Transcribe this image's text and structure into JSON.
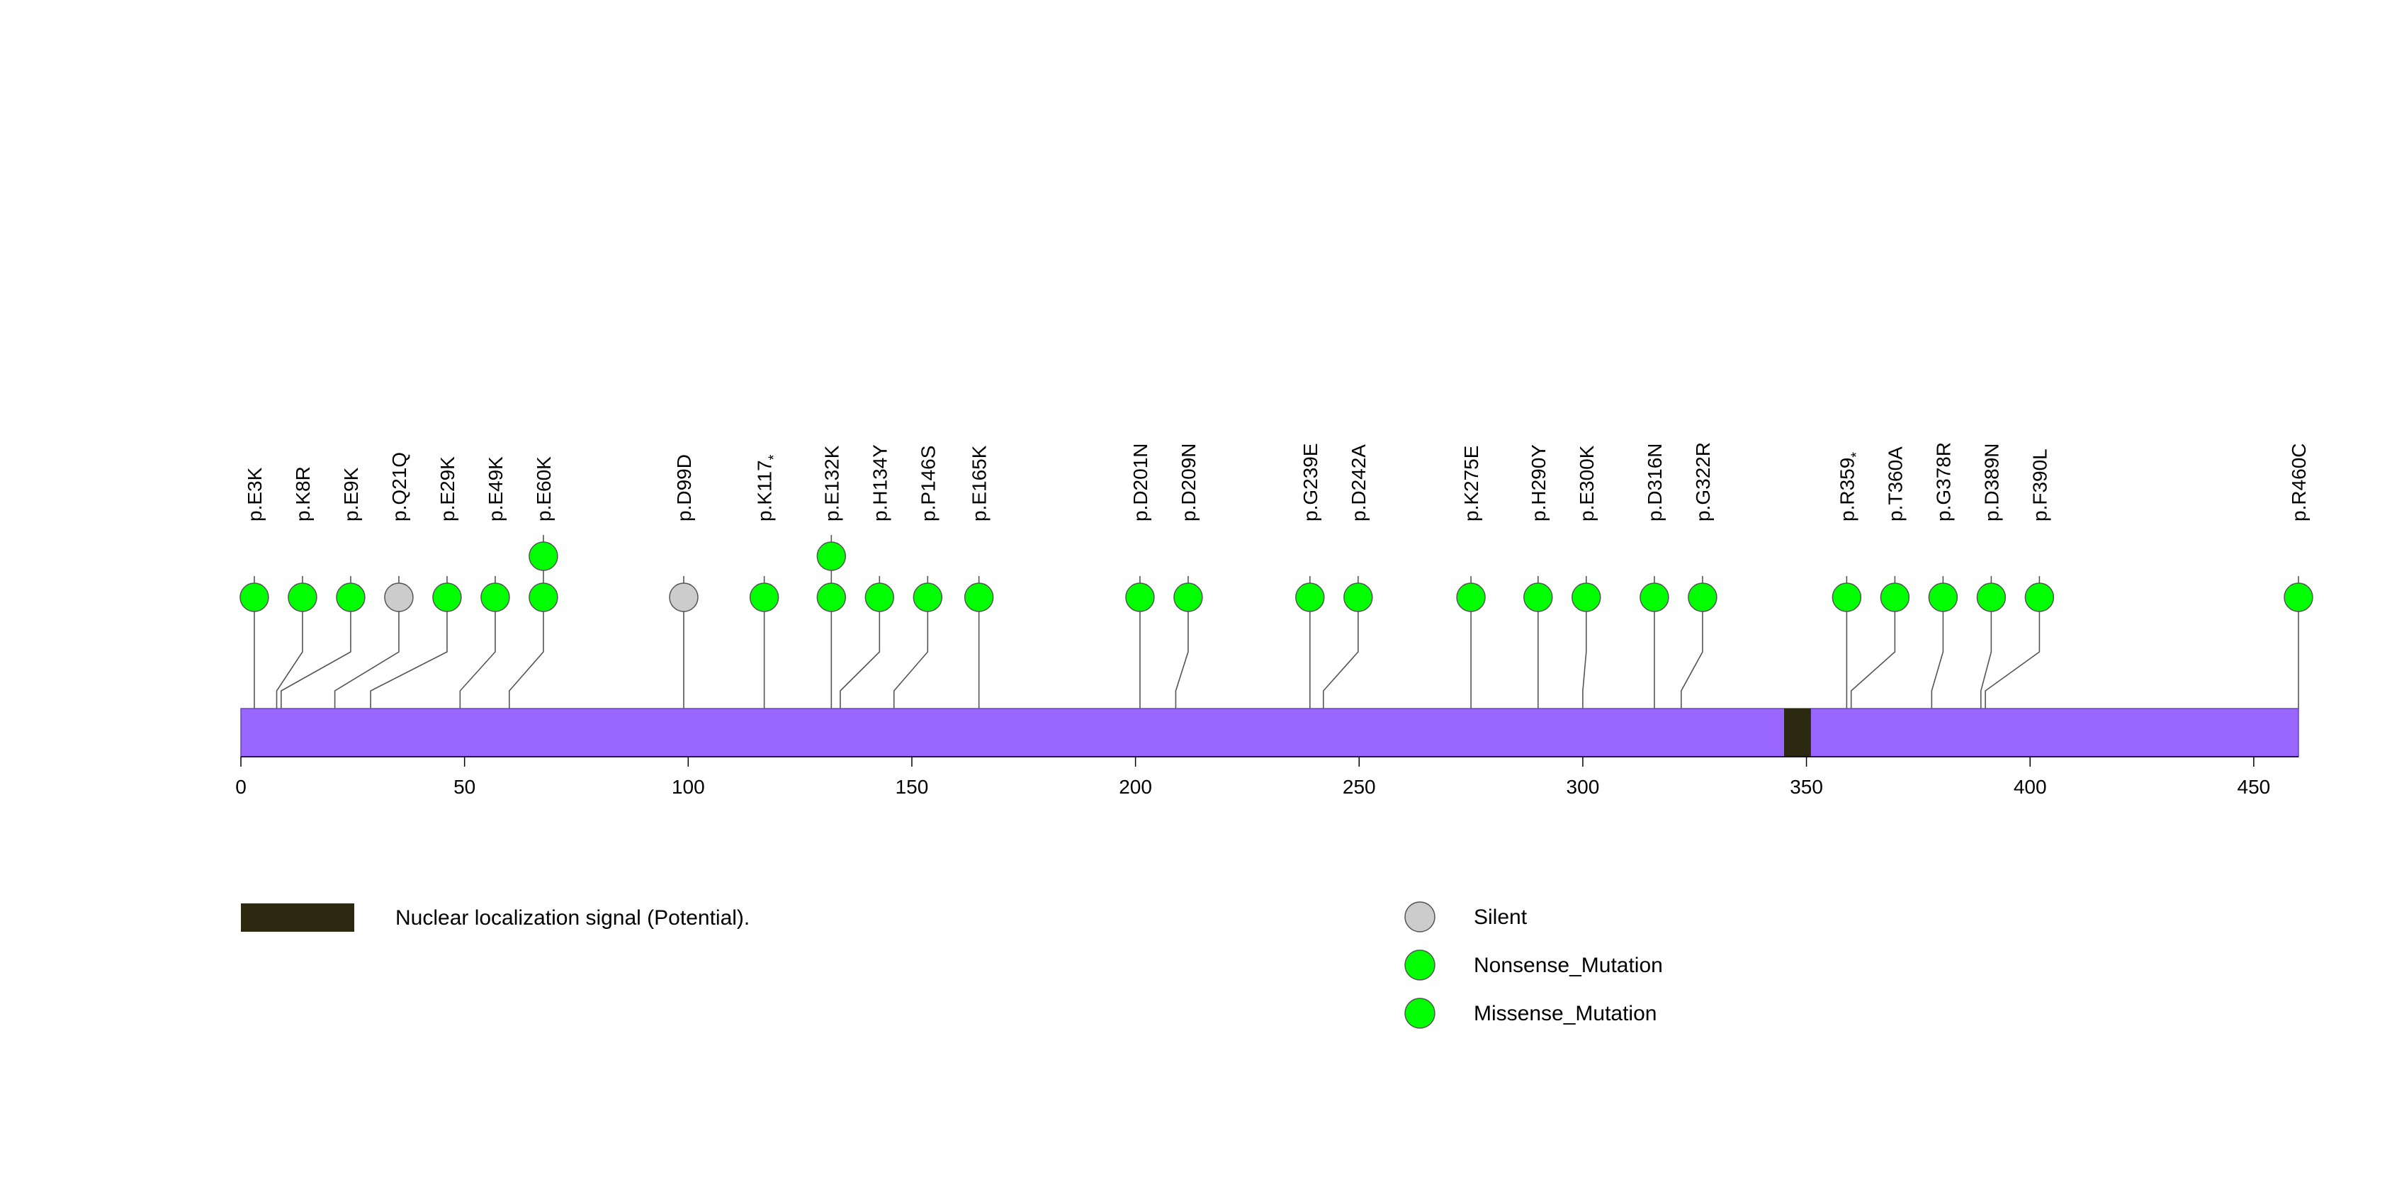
{
  "chart_data": {
    "type": "lollipop",
    "protein_length": 460,
    "axis": {
      "ticks": [
        0,
        50,
        100,
        150,
        200,
        250,
        300,
        350,
        400,
        450
      ]
    },
    "domains": [
      {
        "label": "Nuclear localization signal (Potential).",
        "start": 345,
        "end": 351,
        "color": "#2b2a10"
      }
    ],
    "legend": [
      {
        "label": "Silent",
        "color": "#cccccc"
      },
      {
        "label": "Nonsense_Mutation",
        "color": "#00ff00"
      },
      {
        "label": "Missense_Mutation",
        "color": "#00ff00"
      }
    ],
    "mutations": [
      {
        "label": "p.E3K",
        "position": 3,
        "count": 1,
        "type": "Missense_Mutation"
      },
      {
        "label": "p.K8R",
        "position": 8,
        "count": 1,
        "type": "Missense_Mutation"
      },
      {
        "label": "p.E9K",
        "position": 9,
        "count": 1,
        "type": "Missense_Mutation"
      },
      {
        "label": "p.Q21Q",
        "position": 21,
        "count": 1,
        "type": "Silent"
      },
      {
        "label": "p.E29K",
        "position": 29,
        "count": 1,
        "type": "Missense_Mutation"
      },
      {
        "label": "p.E49K",
        "position": 49,
        "count": 1,
        "type": "Missense_Mutation"
      },
      {
        "label": "p.E60K",
        "position": 60,
        "count": 2,
        "type": "Missense_Mutation"
      },
      {
        "label": "p.D99D",
        "position": 99,
        "count": 1,
        "type": "Silent"
      },
      {
        "label": "p.K117",
        "position": 117,
        "count": 1,
        "type": "Nonsense_Mutation",
        "star": "*"
      },
      {
        "label": "p.E132K",
        "position": 132,
        "count": 2,
        "type": "Missense_Mutation"
      },
      {
        "label": "p.H134Y",
        "position": 134,
        "count": 1,
        "type": "Missense_Mutation"
      },
      {
        "label": "p.P146S",
        "position": 146,
        "count": 1,
        "type": "Missense_Mutation"
      },
      {
        "label": "p.E165K",
        "position": 165,
        "count": 1,
        "type": "Missense_Mutation"
      },
      {
        "label": "p.D201N",
        "position": 201,
        "count": 1,
        "type": "Missense_Mutation"
      },
      {
        "label": "p.D209N",
        "position": 209,
        "count": 1,
        "type": "Missense_Mutation"
      },
      {
        "label": "p.G239E",
        "position": 239,
        "count": 1,
        "type": "Missense_Mutation"
      },
      {
        "label": "p.D242A",
        "position": 242,
        "count": 1,
        "type": "Missense_Mutation"
      },
      {
        "label": "p.K275E",
        "position": 275,
        "count": 1,
        "type": "Missense_Mutation"
      },
      {
        "label": "p.H290Y",
        "position": 290,
        "count": 1,
        "type": "Missense_Mutation"
      },
      {
        "label": "p.E300K",
        "position": 300,
        "count": 1,
        "type": "Missense_Mutation"
      },
      {
        "label": "p.D316N",
        "position": 316,
        "count": 1,
        "type": "Missense_Mutation"
      },
      {
        "label": "p.G322R",
        "position": 322,
        "count": 1,
        "type": "Missense_Mutation"
      },
      {
        "label": "p.R359",
        "position": 359,
        "count": 1,
        "type": "Nonsense_Mutation",
        "star": "*"
      },
      {
        "label": "p.T360A",
        "position": 360,
        "count": 1,
        "type": "Missense_Mutation"
      },
      {
        "label": "p.G378R",
        "position": 378,
        "count": 1,
        "type": "Missense_Mutation"
      },
      {
        "label": "p.D389N",
        "position": 389,
        "count": 1,
        "type": "Missense_Mutation"
      },
      {
        "label": "p.F390L",
        "position": 390,
        "count": 1,
        "type": "Missense_Mutation"
      },
      {
        "label": "p.R460C",
        "position": 460,
        "count": 1,
        "type": "Missense_Mutation"
      }
    ]
  }
}
